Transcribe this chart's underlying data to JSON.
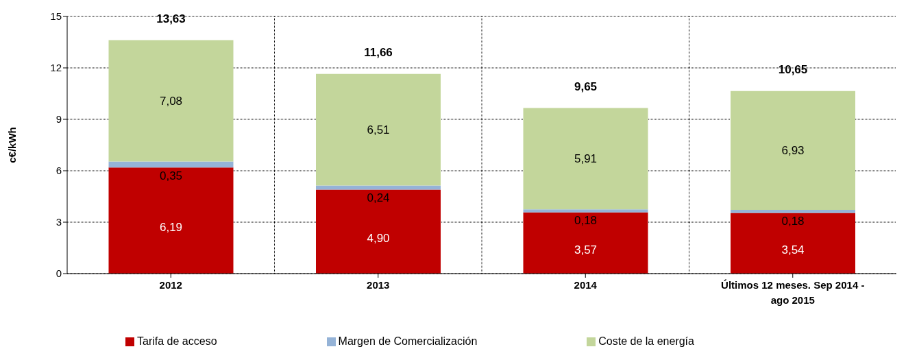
{
  "chart_data": {
    "type": "bar",
    "stacked": true,
    "ylabel": "c€/kWh",
    "categories": [
      "2012",
      "2013",
      "2014",
      "Últimos 12 meses. Sep 2014 - ago 2015"
    ],
    "series": [
      {
        "name": "Tarifa de acceso",
        "color": "#c00000",
        "values": [
          6.19,
          4.9,
          3.57,
          3.54
        ],
        "value_labels": [
          "6,19",
          "4,90",
          "3,57",
          "3,54"
        ]
      },
      {
        "name": "Margen de Comercialización",
        "color": "#95b3d7",
        "values": [
          0.35,
          0.24,
          0.18,
          0.18
        ],
        "value_labels": [
          "0,35",
          "0,24",
          "0,18",
          "0,18"
        ]
      },
      {
        "name": "Coste de la energía",
        "color": "#c3d69b",
        "values": [
          7.08,
          6.51,
          5.91,
          6.93
        ],
        "value_labels": [
          "7,08",
          "6,51",
          "5,91",
          "6,93"
        ]
      }
    ],
    "totals": [
      "13,63",
      "11,66",
      "9,65",
      "10,65"
    ],
    "ylim": [
      0,
      15
    ],
    "yticks": [
      0,
      3,
      6,
      9,
      12,
      15
    ],
    "grid": true,
    "legend": "bottom"
  }
}
